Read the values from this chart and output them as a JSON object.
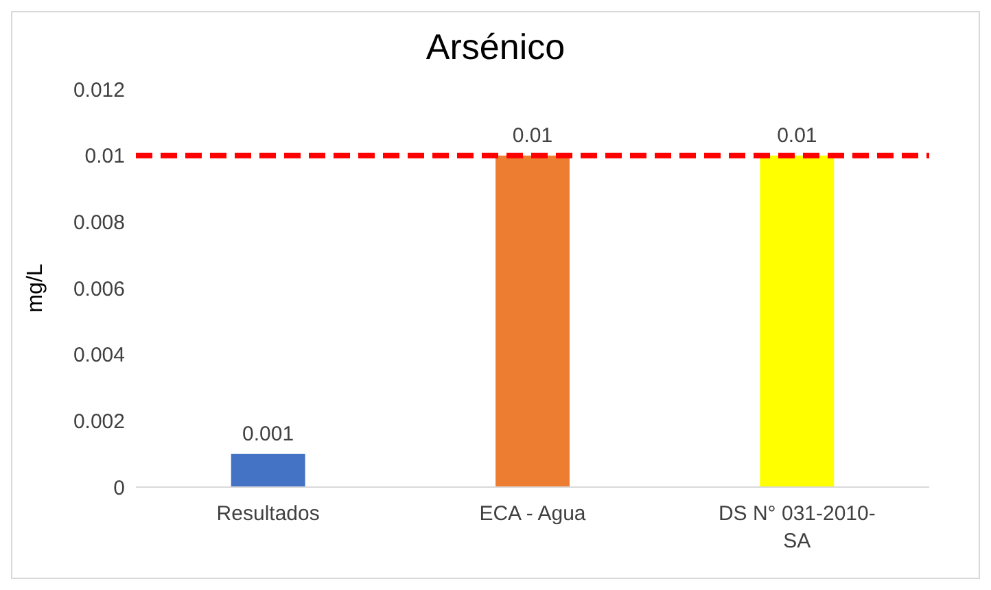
{
  "chart_data": {
    "type": "bar",
    "title": "Arsénico",
    "ylabel": "mg/L",
    "categories": [
      "Resultados",
      "ECA - Agua",
      "DS N° 031-2010-SA"
    ],
    "values": [
      0.001,
      0.01,
      0.01
    ],
    "colors": [
      "#4472c4",
      "#ed7d31",
      "#ffff00"
    ],
    "ylim": [
      0,
      0.012
    ],
    "yticks": [
      0,
      0.002,
      0.004,
      0.006,
      0.008,
      0.01,
      0.012
    ],
    "data_labels": true,
    "ref_lines": [
      {
        "axis": "y",
        "value": 0.01,
        "color": "#ff0000",
        "line_style": "dashed"
      }
    ]
  }
}
